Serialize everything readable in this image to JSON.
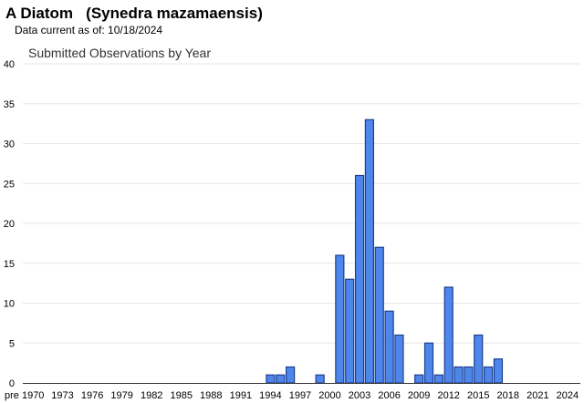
{
  "header": {
    "title": "A Diatom   (Synedra mazamaensis)",
    "subtitle": "Data current as of: 10/18/2024"
  },
  "colors": {
    "bar_fill": "#4f86ec",
    "bar_stroke": "#1a3f8f",
    "grid": "#e6e6e6",
    "axis": "#333333"
  },
  "chart_data": {
    "type": "bar",
    "title": "Submitted Observations by Year",
    "xlabel": "",
    "ylabel": "",
    "ylim": [
      0,
      40
    ],
    "yticks": [
      0,
      5,
      10,
      15,
      20,
      25,
      30,
      35,
      40
    ],
    "grid": true,
    "legend": "none",
    "categories": [
      "pre 1970",
      "1970",
      "1971",
      "1972",
      "1973",
      "1974",
      "1975",
      "1976",
      "1977",
      "1978",
      "1979",
      "1980",
      "1981",
      "1982",
      "1983",
      "1984",
      "1985",
      "1986",
      "1987",
      "1988",
      "1989",
      "1990",
      "1991",
      "1992",
      "1993",
      "1994",
      "1995",
      "1996",
      "1997",
      "1998",
      "1999",
      "2000",
      "2001",
      "2002",
      "2003",
      "2004",
      "2005",
      "2006",
      "2007",
      "2008",
      "2009",
      "2010",
      "2011",
      "2012",
      "2013",
      "2014",
      "2015",
      "2016",
      "2017",
      "2018",
      "2019",
      "2020",
      "2021",
      "2022",
      "2023",
      "2024"
    ],
    "values": [
      0,
      0,
      0,
      0,
      0,
      0,
      0,
      0,
      0,
      0,
      0,
      0,
      0,
      0,
      0,
      0,
      0,
      0,
      0,
      0,
      0,
      0,
      0,
      0,
      0,
      1,
      1,
      2,
      0,
      0,
      1,
      0,
      16,
      13,
      26,
      33,
      17,
      9,
      6,
      0,
      1,
      5,
      1,
      12,
      2,
      2,
      6,
      2,
      3,
      0,
      0,
      0,
      0,
      0,
      0,
      0
    ],
    "xtick_labels": [
      "pre 1970",
      "1973",
      "1976",
      "1979",
      "1982",
      "1985",
      "1988",
      "1991",
      "1994",
      "1997",
      "2000",
      "2003",
      "2006",
      "2009",
      "2012",
      "2015",
      "2018",
      "2021",
      "2024"
    ]
  }
}
